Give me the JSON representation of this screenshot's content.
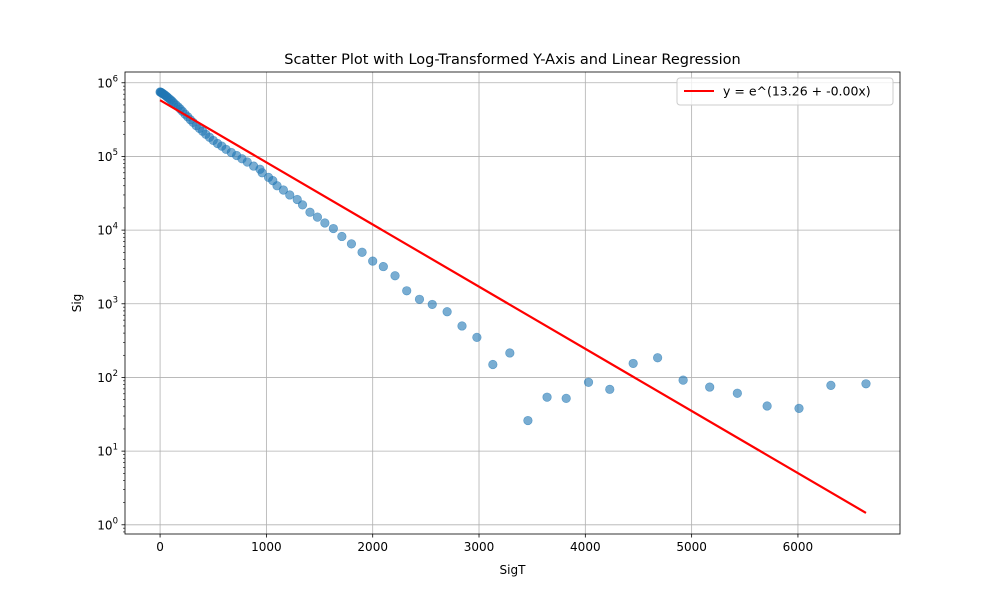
{
  "chart_data": {
    "type": "scatter",
    "title": "Scatter Plot with Log-Transformed Y-Axis and Linear Regression",
    "xlabel": "SigT",
    "ylabel": "Sig",
    "x_scale": "linear",
    "y_scale": "log",
    "xlim": [
      -330,
      6960
    ],
    "ylim": [
      0.75,
      1400000
    ],
    "grid": true,
    "legend_position": "top-right",
    "x_ticks": [
      {
        "value": 0,
        "label": "0"
      },
      {
        "value": 1000,
        "label": "1000"
      },
      {
        "value": 2000,
        "label": "2000"
      },
      {
        "value": 3000,
        "label": "3000"
      },
      {
        "value": 4000,
        "label": "4000"
      },
      {
        "value": 5000,
        "label": "5000"
      },
      {
        "value": 6000,
        "label": "6000"
      }
    ],
    "y_ticks": [
      {
        "value": 1,
        "base": "10",
        "exp": "0"
      },
      {
        "value": 10,
        "base": "10",
        "exp": "1"
      },
      {
        "value": 100,
        "base": "10",
        "exp": "2"
      },
      {
        "value": 1000,
        "base": "10",
        "exp": "3"
      },
      {
        "value": 10000,
        "base": "10",
        "exp": "4"
      },
      {
        "value": 100000,
        "base": "10",
        "exp": "5"
      },
      {
        "value": 1000000,
        "base": "10",
        "exp": "6"
      }
    ],
    "series": [
      {
        "kind": "scatter",
        "color": "#1f77b4",
        "alpha": 0.6,
        "points": [
          [
            0,
            750000
          ],
          [
            5,
            745000
          ],
          [
            10,
            738000
          ],
          [
            15,
            730000
          ],
          [
            20,
            722000
          ],
          [
            30,
            705000
          ],
          [
            40,
            690000
          ],
          [
            50,
            672000
          ],
          [
            60,
            655000
          ],
          [
            70,
            635000
          ],
          [
            85,
            610000
          ],
          [
            100,
            585000
          ],
          [
            115,
            560000
          ],
          [
            130,
            530000
          ],
          [
            150,
            500000
          ],
          [
            170,
            470000
          ],
          [
            190,
            440000
          ],
          [
            210,
            410000
          ],
          [
            235,
            375000
          ],
          [
            260,
            345000
          ],
          [
            285,
            315000
          ],
          [
            310,
            290000
          ],
          [
            340,
            262000
          ],
          [
            370,
            240000
          ],
          [
            400,
            220000
          ],
          [
            430,
            200000
          ],
          [
            465,
            182000
          ],
          [
            500,
            165000
          ],
          [
            540,
            150000
          ],
          [
            580,
            138000
          ],
          [
            620,
            125000
          ],
          [
            670,
            113000
          ],
          [
            720,
            103000
          ],
          [
            770,
            93000
          ],
          [
            820,
            84000
          ],
          [
            880,
            74000
          ],
          [
            940,
            67000
          ],
          [
            960,
            60000
          ],
          [
            1020,
            52000
          ],
          [
            1060,
            47000
          ],
          [
            1100,
            40000
          ],
          [
            1160,
            35000
          ],
          [
            1220,
            30000
          ],
          [
            1290,
            26000
          ],
          [
            1340,
            22000
          ],
          [
            1410,
            17500
          ],
          [
            1480,
            15000
          ],
          [
            1550,
            12500
          ],
          [
            1630,
            10500
          ],
          [
            1710,
            8200
          ],
          [
            1800,
            6500
          ],
          [
            1900,
            5000
          ],
          [
            2000,
            3800
          ],
          [
            2100,
            3200
          ],
          [
            2210,
            2400
          ],
          [
            2320,
            1500
          ],
          [
            2440,
            1150
          ],
          [
            2560,
            980
          ],
          [
            2700,
            780
          ],
          [
            2840,
            500
          ],
          [
            2980,
            350
          ],
          [
            3130,
            150
          ],
          [
            3290,
            215
          ],
          [
            3460,
            26
          ],
          [
            3640,
            54
          ],
          [
            3820,
            52
          ],
          [
            4030,
            86
          ],
          [
            4230,
            69
          ],
          [
            4450,
            155
          ],
          [
            4680,
            185
          ],
          [
            4920,
            92
          ],
          [
            5170,
            74
          ],
          [
            5430,
            61
          ],
          [
            5710,
            41
          ],
          [
            6010,
            38
          ],
          [
            6310,
            78
          ],
          [
            6640,
            82
          ]
        ]
      },
      {
        "kind": "line",
        "name": "y = e^(13.26 + -0.00x)",
        "color": "#ff0000",
        "points": [
          [
            0,
            580000
          ],
          [
            6640,
            1.45
          ]
        ]
      }
    ]
  }
}
